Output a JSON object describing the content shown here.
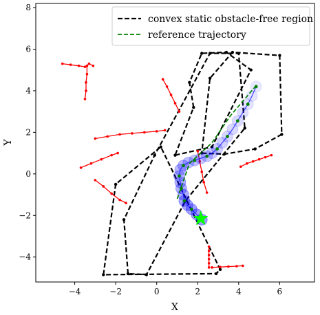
{
  "chart_data": {
    "type": "line",
    "title": "",
    "xlabel": "X",
    "ylabel": "Y",
    "xlim": [
      -5.9,
      7.7
    ],
    "ylim": [
      -5.2,
      8.2
    ],
    "xticks": [
      -4,
      -2,
      0,
      2,
      4,
      6
    ],
    "yticks": [
      -4,
      -2,
      0,
      2,
      4,
      6,
      8
    ],
    "grid": false,
    "legend": {
      "placement": "top-right",
      "entries": [
        {
          "label": "convex static obstacle-free region",
          "style": "black-dashed"
        },
        {
          "label": "reference trajectory",
          "style": "green-dashed"
        }
      ]
    },
    "colors": {
      "region": "#000000",
      "reference": "#008000",
      "obstacle": "#ff0000",
      "robot_trail": "#0000ff",
      "goal": "#00ff00"
    },
    "regions": [
      [
        [
          -2.6,
          -4.85
        ],
        [
          -2.0,
          -0.5
        ],
        [
          0.2,
          1.3
        ],
        [
          3.1,
          -4.6
        ],
        [
          2.9,
          -4.8
        ]
      ],
      [
        [
          -1.4,
          -4.8
        ],
        [
          -1.6,
          -2.2
        ],
        [
          -0.1,
          0.9
        ],
        [
          2.6,
          5.8
        ],
        [
          4.0,
          5.8
        ],
        [
          4.3,
          2.2
        ],
        [
          1.4,
          -1.3
        ],
        [
          -0.5,
          -4.85
        ]
      ],
      [
        [
          0.9,
          0.9
        ],
        [
          2.7,
          1.3
        ],
        [
          4.6,
          5.0
        ],
        [
          3.4,
          5.85
        ],
        [
          2.2,
          5.8
        ],
        [
          1.6,
          4.4
        ],
        [
          1.8,
          3.2
        ]
      ],
      [
        [
          2.2,
          1.0
        ],
        [
          3.3,
          0.95
        ],
        [
          4.8,
          1.2
        ],
        [
          6.1,
          1.9
        ],
        [
          6.0,
          5.7
        ],
        [
          3.7,
          5.85
        ],
        [
          2.6,
          4.6
        ]
      ]
    ],
    "reference_trajectory": [
      [
        1.0,
        -1.2
      ],
      [
        1.6,
        0.5
      ],
      [
        2.7,
        1.5
      ],
      [
        3.6,
        2.8
      ],
      [
        4.9,
        4.3
      ]
    ],
    "robot_trail": [
      [
        2.2,
        -2.2
      ],
      [
        1.95,
        -1.95
      ],
      [
        1.7,
        -1.7
      ],
      [
        1.5,
        -1.5
      ],
      [
        1.35,
        -1.3
      ],
      [
        1.3,
        -1.0
      ],
      [
        1.2,
        -0.7
      ],
      [
        1.15,
        -0.4
      ],
      [
        1.1,
        -0.1
      ],
      [
        1.15,
        0.2
      ],
      [
        1.3,
        0.4
      ],
      [
        1.55,
        0.55
      ],
      [
        1.85,
        0.65
      ],
      [
        2.15,
        0.75
      ],
      [
        2.45,
        0.85
      ],
      [
        2.7,
        1.0
      ],
      [
        2.95,
        1.2
      ],
      [
        3.2,
        1.5
      ],
      [
        3.45,
        1.8
      ],
      [
        3.7,
        2.15
      ],
      [
        3.95,
        2.55
      ],
      [
        4.2,
        2.95
      ],
      [
        4.45,
        3.35
      ],
      [
        4.65,
        3.75
      ],
      [
        4.85,
        4.2
      ]
    ],
    "obstacles": [
      [
        [
          -4.6,
          5.3
        ],
        [
          -4.2,
          5.25
        ],
        [
          -3.8,
          5.2
        ],
        [
          -3.5,
          5.15
        ],
        [
          -3.3,
          5.3
        ],
        [
          -3.1,
          5.2
        ]
      ],
      [
        [
          -3.4,
          5.2
        ],
        [
          -3.4,
          4.8
        ],
        [
          -3.45,
          4.4
        ],
        [
          -3.45,
          4.0
        ],
        [
          -3.5,
          3.6
        ]
      ],
      [
        [
          0.3,
          4.55
        ],
        [
          0.5,
          4.2
        ],
        [
          0.7,
          3.8
        ],
        [
          0.9,
          3.4
        ],
        [
          1.1,
          3.0
        ]
      ],
      [
        [
          -3.0,
          1.7
        ],
        [
          -2.4,
          1.8
        ],
        [
          -1.8,
          1.9
        ],
        [
          -1.2,
          1.95
        ],
        [
          -0.6,
          2.0
        ],
        [
          0.0,
          2.05
        ],
        [
          0.4,
          2.1
        ]
      ],
      [
        [
          -3.7,
          0.3
        ],
        [
          -3.2,
          0.5
        ],
        [
          -2.7,
          0.7
        ],
        [
          -2.2,
          0.9
        ],
        [
          -1.9,
          1.0
        ]
      ],
      [
        [
          -3.0,
          -0.3
        ],
        [
          -2.6,
          -0.6
        ],
        [
          -2.2,
          -0.95
        ],
        [
          -1.8,
          -1.25
        ],
        [
          -1.5,
          -1.4
        ]
      ],
      [
        [
          2.0,
          1.1
        ],
        [
          2.1,
          0.6
        ],
        [
          2.2,
          0.1
        ],
        [
          2.3,
          -0.4
        ],
        [
          2.45,
          -0.9
        ]
      ],
      [
        [
          4.1,
          0.35
        ],
        [
          4.4,
          0.5
        ],
        [
          4.7,
          0.6
        ],
        [
          5.0,
          0.7
        ],
        [
          5.3,
          0.8
        ],
        [
          5.6,
          0.9
        ]
      ],
      [
        [
          2.55,
          -3.5
        ],
        [
          2.55,
          -3.7
        ],
        [
          2.55,
          -3.9
        ],
        [
          2.55,
          -4.1
        ],
        [
          2.55,
          -4.3
        ],
        [
          2.55,
          -4.5
        ]
      ],
      [
        [
          2.7,
          -4.5
        ],
        [
          3.1,
          -4.48
        ],
        [
          3.5,
          -4.46
        ],
        [
          3.9,
          -4.44
        ],
        [
          4.2,
          -4.42
        ]
      ]
    ],
    "goal": [
      2.15,
      -2.15
    ]
  }
}
